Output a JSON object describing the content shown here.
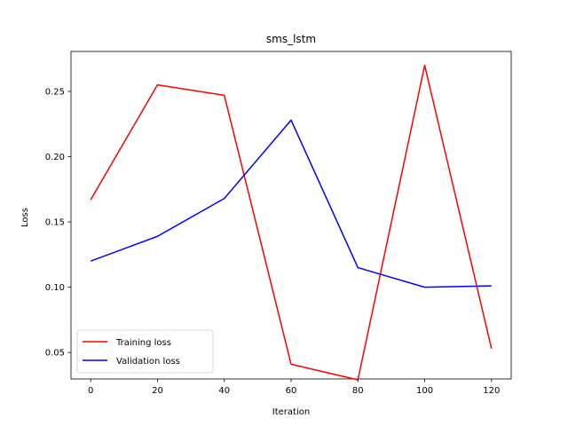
{
  "chart_data": {
    "type": "line",
    "title": "sms_lstm",
    "xlabel": "Iteration",
    "ylabel": "Loss",
    "xlim": [
      -5.9,
      125.9
    ],
    "ylim": [
      0.0297,
      0.2806
    ],
    "xticks": [
      0,
      20,
      40,
      60,
      80,
      100,
      120
    ],
    "xtick_labels": [
      "0",
      "20",
      "40",
      "60",
      "80",
      "100",
      "120"
    ],
    "yticks": [
      0.05,
      0.1,
      0.15,
      0.2,
      0.25
    ],
    "ytick_labels": [
      "0.05",
      "0.10",
      "0.15",
      "0.20",
      "0.25"
    ],
    "grid": false,
    "legend_position": "lower-left",
    "series": [
      {
        "name": "Training loss",
        "color": "#ff0000",
        "x": [
          0,
          20,
          40,
          60,
          80,
          100,
          120
        ],
        "y": [
          0.167,
          0.255,
          0.247,
          0.041,
          0.029,
          0.27,
          0.053
        ]
      },
      {
        "name": "Validation loss",
        "color": "#0000ff",
        "x": [
          0,
          20,
          40,
          60,
          80,
          100,
          120
        ],
        "y": [
          0.12,
          0.139,
          0.168,
          0.228,
          0.115,
          0.1,
          0.101
        ]
      }
    ]
  }
}
